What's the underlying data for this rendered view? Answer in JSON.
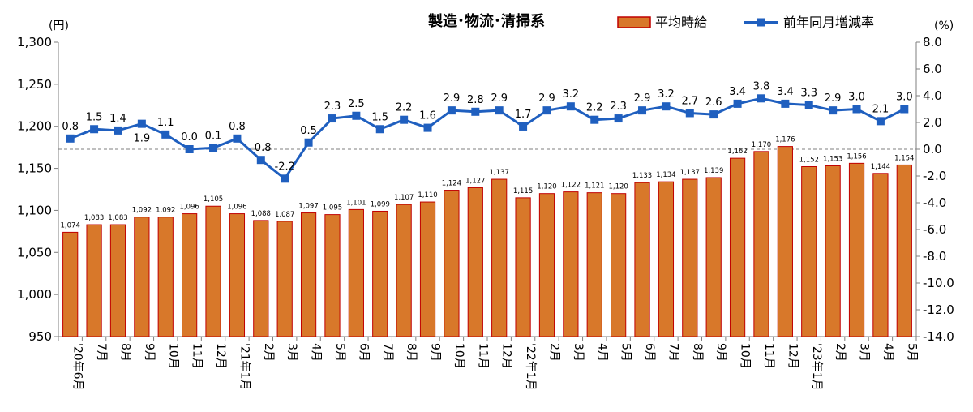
{
  "chart_data": {
    "type": "bar",
    "title": "製造･物流･清掃系",
    "y_left_unit": "(円)",
    "y_right_unit": "(%)",
    "ylim_left": [
      950,
      1300
    ],
    "ylim_right": [
      -14.0,
      8.0
    ],
    "y_left_ticks": [
      "950",
      "1,000",
      "1,050",
      "1,100",
      "1,150",
      "1,200",
      "1,250",
      "1,300"
    ],
    "y_right_ticks": [
      "-14.0",
      "-12.0",
      "-10.0",
      "-8.0",
      "-6.0",
      "-4.0",
      "-2.0",
      "0.0",
      "2.0",
      "4.0",
      "6.0",
      "8.0"
    ],
    "categories": [
      "'20年6月",
      "7月",
      "8月",
      "9月",
      "10月",
      "11月",
      "12月",
      "'21年1月",
      "2月",
      "3月",
      "4月",
      "5月",
      "6月",
      "7月",
      "8月",
      "9月",
      "10月",
      "11月",
      "12月",
      "'22年1月",
      "2月",
      "3月",
      "4月",
      "5月",
      "6月",
      "7月",
      "8月",
      "9月",
      "10月",
      "11月",
      "12月",
      "'23年1月",
      "2月",
      "3月",
      "4月",
      "5月"
    ],
    "series": [
      {
        "name": "平均時給",
        "type": "bar",
        "axis": "left",
        "color": "#d8782a",
        "edge_color": "#c00000",
        "values": [
          1074,
          1083,
          1083,
          1092,
          1092,
          1096,
          1105,
          1096,
          1088,
          1087,
          1097,
          1095,
          1101,
          1099,
          1107,
          1110,
          1124,
          1127,
          1137,
          1115,
          1120,
          1122,
          1121,
          1120,
          1133,
          1134,
          1137,
          1139,
          1162,
          1170,
          1176,
          1152,
          1153,
          1156,
          1144,
          1154
        ],
        "labels": [
          "1,074",
          "1,083",
          "1,083",
          "1,092",
          "1,092",
          "1,096",
          "1,105",
          "1,096",
          "1,088",
          "1,087",
          "1,097",
          "1,095",
          "1,101",
          "1,099",
          "1,107",
          "1,110",
          "1,124",
          "1,127",
          "1,137",
          "1,115",
          "1,120",
          "1,122",
          "1,121",
          "1,120",
          "1,133",
          "1,134",
          "1,137",
          "1,139",
          "1,162",
          "1,170",
          "1,176",
          "1,152",
          "1,153",
          "1,156",
          "1,144",
          "1,154"
        ]
      },
      {
        "name": "前年同月増減率",
        "type": "line",
        "axis": "right",
        "color": "#1f5fbf",
        "values": [
          0.8,
          1.5,
          1.4,
          1.9,
          1.1,
          0.0,
          0.1,
          0.8,
          -0.8,
          -2.2,
          0.5,
          2.3,
          2.5,
          1.5,
          2.2,
          1.6,
          2.9,
          2.8,
          2.9,
          1.7,
          2.9,
          3.2,
          2.2,
          2.3,
          2.9,
          3.2,
          2.7,
          2.6,
          3.4,
          3.8,
          3.4,
          3.3,
          2.9,
          3.0,
          2.1,
          3.0
        ],
        "labels": [
          "0.8",
          "1.5",
          "1.4",
          "1.9",
          "1.1",
          "0.0",
          "0.1",
          "0.8",
          "-0.8",
          "-2.2",
          "0.5",
          "2.3",
          "2.5",
          "1.5",
          "2.2",
          "1.6",
          "2.9",
          "2.8",
          "2.9",
          "1.7",
          "2.9",
          "3.2",
          "2.2",
          "2.3",
          "2.9",
          "3.2",
          "2.7",
          "2.6",
          "3.4",
          "3.8",
          "3.4",
          "3.3",
          "2.9",
          "3.0",
          "2.1",
          "3.0"
        ]
      }
    ],
    "legend": "top-right",
    "grid": false,
    "zero_line_right": "dashed"
  }
}
